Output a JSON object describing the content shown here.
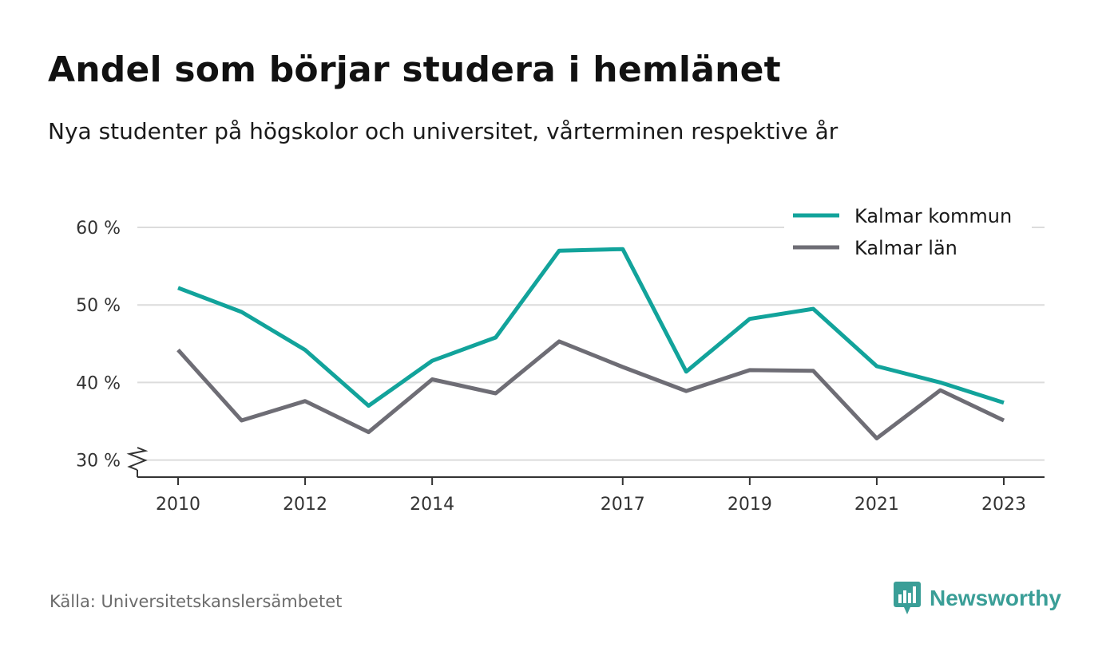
{
  "title": "Andel som börjar studera i hemlänet",
  "subtitle": "Nya studenter på högskolor och universitet, vårterminen respektive år",
  "source": "Källa: Universitetskanslersämbetet",
  "brand": {
    "name": "Newsworthy",
    "logo_icon": "bar-chart-speech-bubble-icon",
    "color": "#3a9e97"
  },
  "chart_data": {
    "type": "line",
    "x": [
      2010,
      2011,
      2012,
      2013,
      2014,
      2015,
      2016,
      2017,
      2018,
      2019,
      2020,
      2021,
      2022,
      2023
    ],
    "x_tick_labels": [
      "2010",
      "2012",
      "2014",
      "2017",
      "2019",
      "2021",
      "2023"
    ],
    "y_tick_values": [
      30,
      40,
      50,
      60
    ],
    "y_tick_labels": [
      "30 %",
      "40 %",
      "50 %",
      "60 %"
    ],
    "ylim": [
      27.8,
      60
    ],
    "y_axis_break": true,
    "grid": true,
    "legend_position": "top-right",
    "series": [
      {
        "name": "Kalmar kommun",
        "color": "#12a39b",
        "values": [
          52.2,
          49.1,
          44.2,
          37.0,
          42.8,
          45.8,
          57.0,
          57.2,
          41.4,
          48.2,
          49.5,
          42.1,
          40.0,
          37.4
        ]
      },
      {
        "name": "Kalmar län",
        "color": "#6e6d75",
        "values": [
          44.2,
          35.1,
          37.6,
          33.6,
          40.4,
          38.6,
          45.3,
          42.0,
          38.9,
          41.6,
          41.5,
          32.8,
          39.0,
          35.1
        ]
      }
    ]
  }
}
